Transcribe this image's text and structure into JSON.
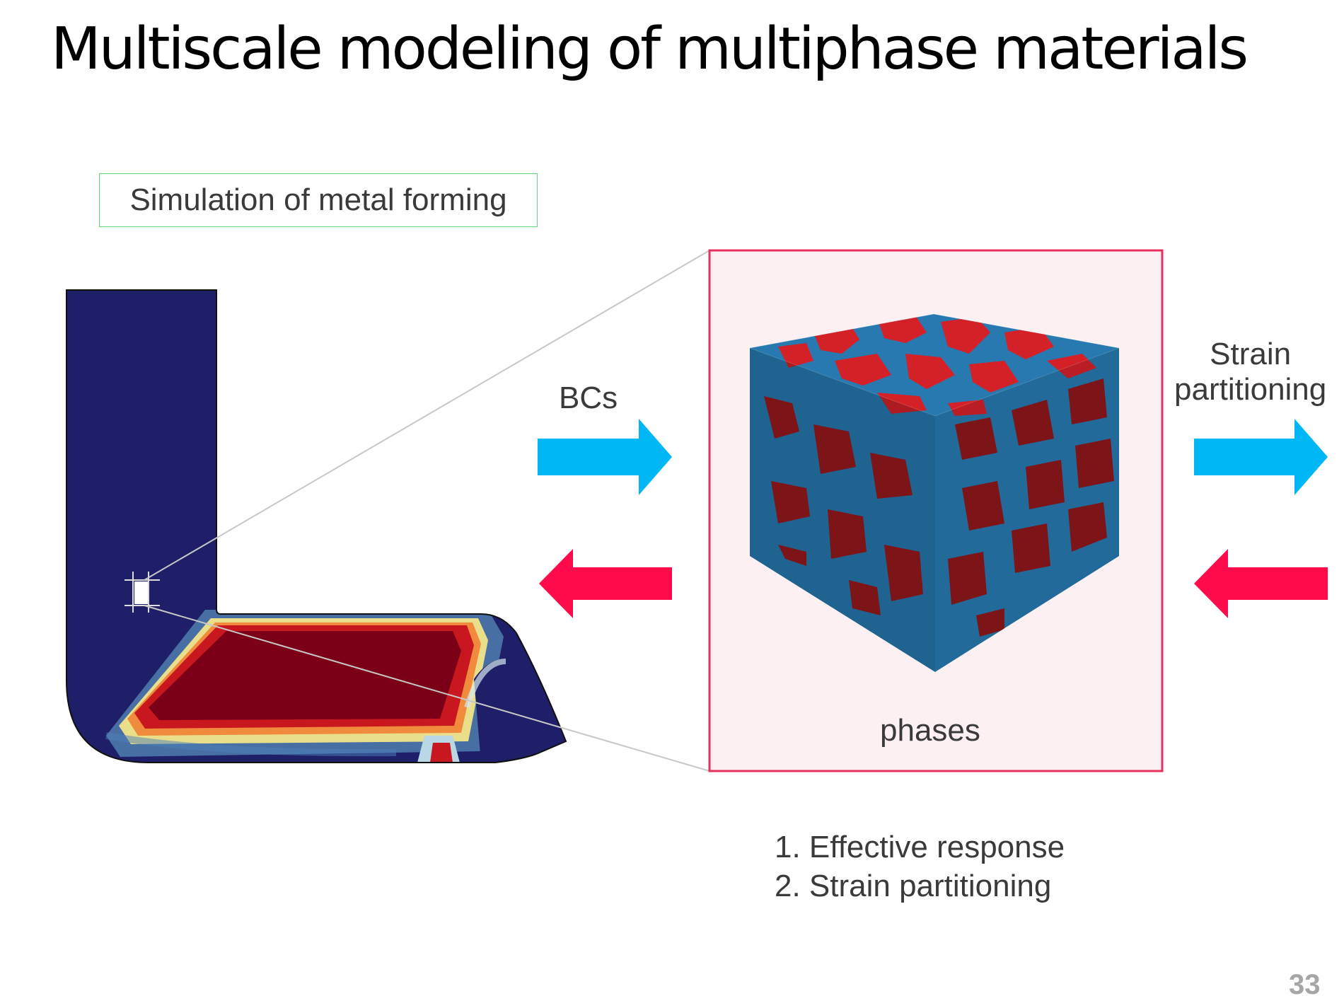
{
  "slide": {
    "title": "Multiscale modeling of multiphase materials",
    "page_number": "33"
  },
  "macro": {
    "label": "Simulation of metal forming"
  },
  "arrows": {
    "bcs_label": "BCs",
    "strain_label_line1": "Strain",
    "strain_label_line2": "partitioning",
    "forward_color": "#00b7f5",
    "backward_color": "#ff0a4a"
  },
  "micro": {
    "phase_label": "phases",
    "frame_color": "#e8305f",
    "phase_colors": [
      "#2779b0",
      "#d42128"
    ]
  },
  "outputs": {
    "items": [
      "1. Effective response",
      "2. Strain partitioning"
    ]
  }
}
